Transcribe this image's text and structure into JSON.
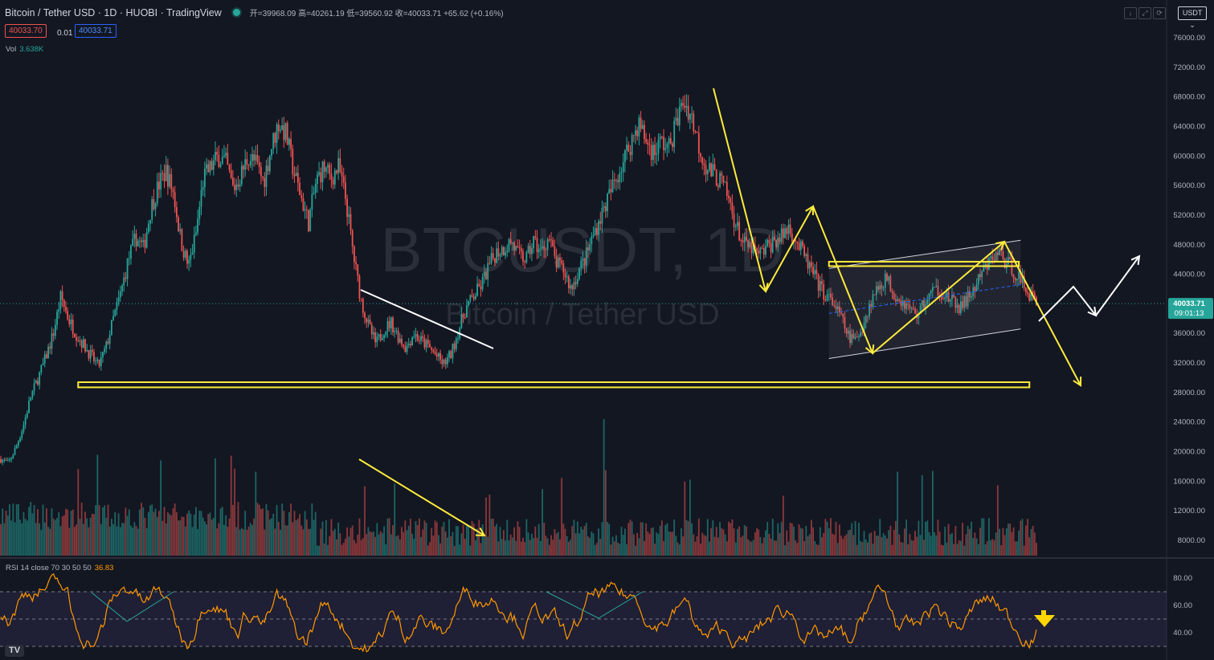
{
  "header": {
    "symbol_title": "Bitcoin / Tether USD · 1D · HUOBI · TradingView",
    "ohlc": "开=39968.09 高=40261.19 低=39560.92 收=40033.71 +65.62 (+0.16%)",
    "sell_price": "40033.70",
    "spread": "0.01",
    "buy_price": "40033.71",
    "volume_label": "Vol",
    "volume_value": "3.638K",
    "currency": "USDT"
  },
  "watermark": {
    "line1": "BTCUSDT, 1D",
    "line2": "Bitcoin / Tether USD"
  },
  "rsi": {
    "label": "RSI 14 close 70 30 50 50",
    "value": "36.83",
    "levels": [
      70,
      50,
      30
    ],
    "axis_ticks": [
      "80.00",
      "60.00",
      "40.00"
    ]
  },
  "price_tag": {
    "price": "40033.71",
    "countdown": "09:01:13"
  },
  "colors": {
    "up": "#26a69a",
    "down": "#ef5350",
    "annotation": "#ffeb3b",
    "rsi_line": "#ff9800",
    "background": "#131722"
  },
  "icons": [
    "download-icon",
    "fullscreen-icon",
    "screenshot-icon",
    "tradingview-logo-icon"
  ],
  "chart_data": {
    "type": "candlestick",
    "symbol": "BTCUSDT",
    "interval": "1D",
    "y_axis_ticks": [
      "76000.00",
      "72000.00",
      "68000.00",
      "64000.00",
      "60000.00",
      "56000.00",
      "52000.00",
      "48000.00",
      "44000.00",
      "40000.00",
      "36000.00",
      "32000.00",
      "28000.00",
      "24000.00",
      "20000.00",
      "16000.00",
      "12000.00",
      "8000.00"
    ],
    "ylim": [
      6400,
      80000
    ],
    "close_path": [
      19000,
      18400,
      20500,
      23500,
      27500,
      30000,
      32800,
      36000,
      41000,
      38000,
      36000,
      34500,
      33000,
      31500,
      34000,
      38000,
      41500,
      46000,
      49000,
      47500,
      53000,
      56000,
      58000,
      55000,
      48500,
      45000,
      49500,
      57000,
      58500,
      60000,
      59000,
      55500,
      57500,
      60000,
      59000,
      56500,
      61000,
      64500,
      63000,
      58000,
      54500,
      51000,
      56500,
      58500,
      57000,
      58500,
      54000,
      46500,
      40500,
      37000,
      34500,
      36500,
      37500,
      35500,
      34000,
      36000,
      35000,
      34200,
      33000,
      31800,
      33200,
      36500,
      39500,
      41000,
      42500,
      45000,
      47000,
      47500,
      48500,
      46500,
      46000,
      48500,
      47000,
      49000,
      45500,
      44500,
      42000,
      44500,
      46500,
      49500,
      52000,
      54500,
      57000,
      59500,
      62000,
      64500,
      62000,
      60500,
      62000,
      61000,
      64500,
      67500,
      65500,
      61500,
      58500,
      57500,
      56500,
      54000,
      50500,
      48000,
      47500,
      46500,
      47500,
      48500,
      49000,
      50500,
      48500,
      46500,
      44500,
      42500,
      41000,
      40000,
      38000,
      35500,
      35000,
      37500,
      40500,
      42500,
      43500,
      41500,
      40500,
      39500,
      38500,
      40000,
      41500,
      42000,
      41000,
      40000,
      39500,
      41000,
      42500,
      44500,
      46000,
      47000,
      45500,
      44500,
      43000,
      41500,
      40033
    ],
    "annotations": {
      "support": {
        "top": 29400,
        "bottom": 28700,
        "from_bar": 44,
        "to_bar": 585
      },
      "resistance": {
        "top": 45700,
        "bottom": 45100,
        "from_bar": 471,
        "to_bar": 579
      },
      "channel": {
        "lower_start": 32600,
        "lower_end": 36600,
        "upper_start": 44800,
        "upper_end": 48600,
        "from_bar": 471,
        "to_bar": 580
      },
      "last_price": 40033.71
    }
  }
}
